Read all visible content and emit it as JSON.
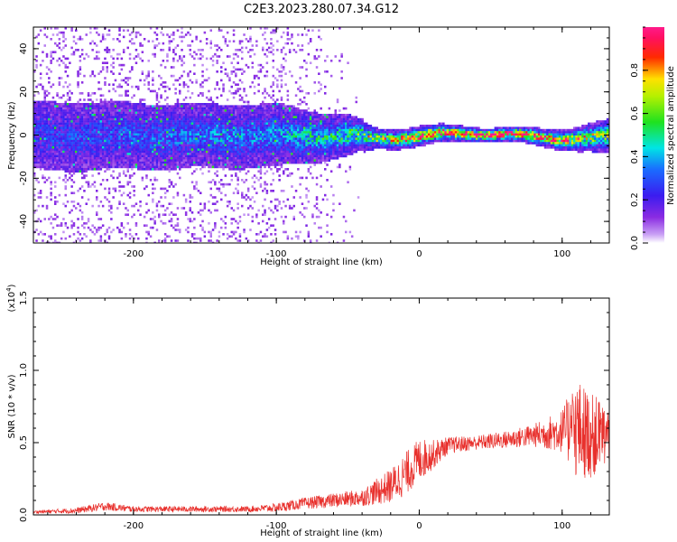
{
  "figure": {
    "title": "C2E3.2023.280.07.34.G12"
  },
  "colors": {
    "snr_line": "#e8302c",
    "axis": "#000000"
  },
  "chart_data": [
    {
      "type": "heatmap",
      "title": "",
      "xlabel": "Height of straight line (km)",
      "ylabel": "Frequency (Hz)",
      "xlim": [
        -270,
        133
      ],
      "ylim": [
        -50,
        50
      ],
      "xticks": [
        -200,
        -100,
        0,
        100
      ],
      "xtick_labels": [
        "-200",
        "-100",
        "0",
        "100"
      ],
      "yticks": [
        -40,
        -20,
        0,
        20,
        40
      ],
      "ytick_labels": [
        "-40",
        "-20",
        "0",
        "20",
        "40"
      ],
      "grid": false,
      "colorbar": {
        "label": "Normalized spectral amplitude",
        "range": [
          0,
          1
        ],
        "ticks": [
          0.0,
          0.2,
          0.4,
          0.6,
          0.8
        ],
        "tick_labels": [
          "0.0",
          "0.2",
          "0.4",
          "0.6",
          "0.8"
        ],
        "colormap": "rainbow (purple-blue-cyan-green-yellow-red-magenta)"
      },
      "description_points": [
        {
          "height": -270,
          "band_halfwidth_hz": 10,
          "peak_amp": 0.2,
          "scatter": "wide"
        },
        {
          "height": -100,
          "band_halfwidth_hz": 9,
          "peak_amp": 0.3,
          "scatter": "wide"
        },
        {
          "height": -50,
          "band_halfwidth_hz": 6,
          "peak_amp": 0.45,
          "scatter": "some"
        },
        {
          "height": -30,
          "band_halfwidth_hz": 3,
          "peak_amp": 0.6,
          "scatter": "none"
        },
        {
          "height": 0,
          "band_halfwidth_hz": 3,
          "peak_amp": 0.85,
          "scatter": "none"
        },
        {
          "height": 50,
          "band_halfwidth_hz": 2,
          "peak_amp": 0.95,
          "scatter": "none"
        },
        {
          "height": 100,
          "band_halfwidth_hz": 3,
          "peak_amp": 0.75,
          "scatter": "none"
        },
        {
          "height": 133,
          "band_halfwidth_hz": 5,
          "peak_amp": 0.5,
          "scatter": "none"
        }
      ]
    },
    {
      "type": "line",
      "title": "",
      "xlabel": "Height of straight line (km)",
      "ylabel": "SNR (10 * v/v)",
      "yscale_label": "(x10",
      "yscale_exponent": "4",
      "yscale_suffix": ")",
      "xlim": [
        -270,
        133
      ],
      "ylim": [
        0,
        1.5
      ],
      "xticks": [
        -200,
        -100,
        0,
        100
      ],
      "xtick_labels": [
        "-200",
        "-100",
        "0",
        "100"
      ],
      "yticks": [
        0.0,
        0.5,
        1.0,
        1.5
      ],
      "ytick_labels": [
        "0.0",
        "0.5",
        "1.0",
        "1.5"
      ],
      "grid": false,
      "series": [
        {
          "name": "",
          "x": [
            -270,
            -240,
            -220,
            -200,
            -160,
            -120,
            -100,
            -80,
            -60,
            -40,
            -20,
            -10,
            0,
            10,
            20,
            40,
            60,
            80,
            100,
            110,
            120,
            133
          ],
          "y": [
            0.02,
            0.03,
            0.06,
            0.04,
            0.04,
            0.04,
            0.05,
            0.08,
            0.1,
            0.12,
            0.2,
            0.28,
            0.38,
            0.42,
            0.48,
            0.5,
            0.52,
            0.55,
            0.58,
            0.6,
            0.55,
            0.55
          ],
          "noise": [
            0.01,
            0.02,
            0.03,
            0.02,
            0.02,
            0.02,
            0.03,
            0.04,
            0.05,
            0.06,
            0.12,
            0.15,
            0.15,
            0.1,
            0.06,
            0.05,
            0.06,
            0.08,
            0.15,
            0.35,
            0.3,
            0.2
          ]
        }
      ]
    }
  ]
}
